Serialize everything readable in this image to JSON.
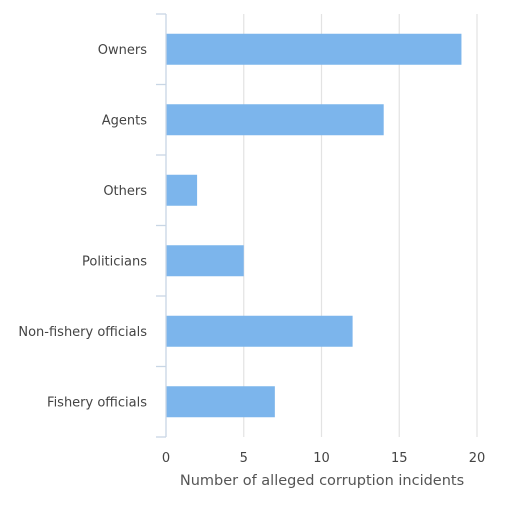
{
  "chart_data": {
    "type": "bar",
    "orientation": "horizontal",
    "categories": [
      "Owners",
      "Agents",
      "Others",
      "Politicians",
      "Non-fishery officials",
      "Fishery officials"
    ],
    "values": [
      19,
      14,
      2,
      5,
      12,
      7
    ],
    "xlabel": "Number of alleged corruption incidents",
    "ylabel": "",
    "xlim": [
      0,
      20
    ],
    "xticks": [
      0,
      5,
      10,
      15,
      20
    ],
    "grid": true,
    "legend": "none",
    "colors": {
      "bar": "#7cb5ec",
      "grid": "#e3e3e3",
      "axis": "#c8d6e5"
    }
  }
}
